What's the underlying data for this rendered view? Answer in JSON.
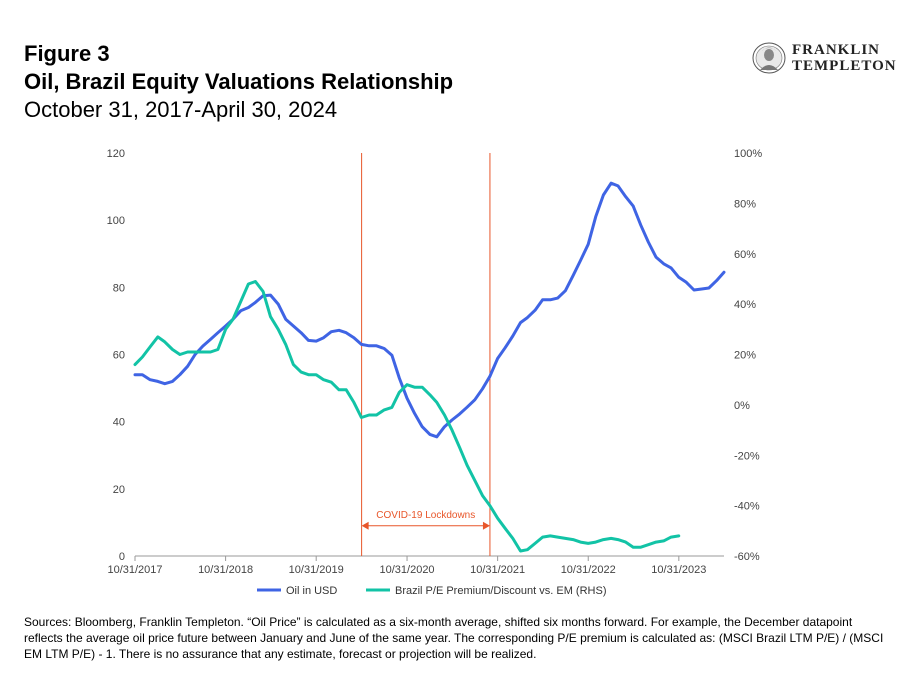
{
  "header": {
    "figure_label": "Figure 3",
    "title": "Oil, Brazil Equity Valuations Relationship",
    "subtitle": "October 31, 2017-April 30, 2024"
  },
  "logo": {
    "line1": "FRANKLIN",
    "line2": "TEMPLETON",
    "icon": "portrait-icon"
  },
  "colors": {
    "oil": "#3F64E4",
    "pe": "#12C3A6",
    "lockdown": "#E8562A",
    "gridline": "#d9d9d9",
    "axis": "#999999"
  },
  "chart_data": {
    "type": "line",
    "x_ticks": [
      "10/31/2017",
      "10/31/2018",
      "10/31/2019",
      "10/31/2020",
      "10/31/2021",
      "10/31/2022",
      "10/31/2023"
    ],
    "y_left": {
      "min": 0,
      "max": 120,
      "ticks": [
        0,
        20,
        40,
        60,
        80,
        100,
        120
      ]
    },
    "y_right": {
      "min": -0.6,
      "max": 1.0,
      "ticks": [
        "-60%",
        "-40%",
        "-20%",
        "0%",
        "20%",
        "40%",
        "60%",
        "80%",
        "100%"
      ]
    },
    "grid": false,
    "legend_position": "bottom",
    "series": [
      {
        "name": "Oil in USD",
        "axis": "left",
        "points": [
          [
            "2017-10-31",
            54.0
          ],
          [
            "2017-11-30",
            54.0
          ],
          [
            "2017-12-31",
            52.5
          ],
          [
            "2018-01-31",
            52.0
          ],
          [
            "2018-02-28",
            51.3
          ],
          [
            "2018-03-31",
            52.0
          ],
          [
            "2018-04-30",
            54.0
          ],
          [
            "2018-05-31",
            56.5
          ],
          [
            "2018-06-30",
            60.0
          ],
          [
            "2018-07-31",
            62.5
          ],
          [
            "2018-08-31",
            64.5
          ],
          [
            "2018-09-30",
            66.5
          ],
          [
            "2018-10-31",
            68.5
          ],
          [
            "2018-11-30",
            70.5
          ],
          [
            "2018-12-31",
            73.0
          ],
          [
            "2019-01-31",
            74.0
          ],
          [
            "2019-02-28",
            75.5
          ],
          [
            "2019-03-31",
            77.5
          ],
          [
            "2019-04-30",
            77.7
          ],
          [
            "2019-05-31",
            75.0
          ],
          [
            "2019-06-30",
            70.5
          ],
          [
            "2019-07-31",
            68.5
          ],
          [
            "2019-08-31",
            66.5
          ],
          [
            "2019-09-30",
            64.2
          ],
          [
            "2019-10-31",
            64.0
          ],
          [
            "2019-11-30",
            65.0
          ],
          [
            "2019-12-31",
            66.8
          ],
          [
            "2020-01-31",
            67.2
          ],
          [
            "2020-02-29",
            66.5
          ],
          [
            "2020-03-31",
            65.0
          ],
          [
            "2020-04-30",
            63.0
          ],
          [
            "2020-05-31",
            62.6
          ],
          [
            "2020-06-30",
            62.6
          ],
          [
            "2020-07-31",
            61.8
          ],
          [
            "2020-08-31",
            59.8
          ],
          [
            "2020-09-30",
            53.0
          ],
          [
            "2020-10-31",
            47.0
          ],
          [
            "2020-11-30",
            42.5
          ],
          [
            "2020-12-31",
            38.5
          ],
          [
            "2021-01-31",
            36.2
          ],
          [
            "2021-02-28",
            35.5
          ],
          [
            "2021-03-31",
            38.5
          ],
          [
            "2021-04-30",
            40.5
          ],
          [
            "2021-05-31",
            42.3
          ],
          [
            "2021-06-30",
            44.3
          ],
          [
            "2021-07-31",
            46.5
          ],
          [
            "2021-08-31",
            49.8
          ],
          [
            "2021-09-30",
            53.5
          ],
          [
            "2021-10-31",
            58.8
          ],
          [
            "2021-11-30",
            62.0
          ],
          [
            "2021-12-31",
            65.5
          ],
          [
            "2022-01-31",
            69.5
          ],
          [
            "2022-02-28",
            71.0
          ],
          [
            "2022-03-31",
            73.2
          ],
          [
            "2022-04-30",
            76.3
          ],
          [
            "2022-05-31",
            76.3
          ],
          [
            "2022-06-30",
            76.8
          ],
          [
            "2022-07-31",
            79.0
          ],
          [
            "2022-08-31",
            83.5
          ],
          [
            "2022-09-30",
            88.0
          ],
          [
            "2022-10-31",
            92.8
          ],
          [
            "2022-11-30",
            101.0
          ],
          [
            "2022-12-31",
            107.5
          ],
          [
            "2023-01-31",
            111.0
          ],
          [
            "2023-02-28",
            110.2
          ],
          [
            "2023-03-31",
            107.0
          ],
          [
            "2023-04-30",
            104.2
          ],
          [
            "2023-05-31",
            98.5
          ],
          [
            "2023-06-30",
            93.5
          ],
          [
            "2023-07-31",
            89.0
          ],
          [
            "2023-08-31",
            87.0
          ],
          [
            "2023-09-30",
            85.8
          ],
          [
            "2023-10-31",
            83.0
          ],
          [
            "2023-11-30",
            81.5
          ],
          [
            "2023-12-31",
            79.2
          ],
          [
            "2024-01-31",
            79.5
          ],
          [
            "2024-02-29",
            79.8
          ],
          [
            "2024-03-31",
            82.0
          ],
          [
            "2024-04-30",
            84.5
          ]
        ]
      },
      {
        "name": "Brazil P/E Premium/Discount vs. EM (RHS)",
        "axis": "right",
        "points": [
          [
            "2017-10-31",
            0.16
          ],
          [
            "2017-11-30",
            0.19
          ],
          [
            "2017-12-31",
            0.23
          ],
          [
            "2018-01-31",
            0.27
          ],
          [
            "2018-02-28",
            0.25
          ],
          [
            "2018-03-31",
            0.22
          ],
          [
            "2018-04-30",
            0.2
          ],
          [
            "2018-05-31",
            0.21
          ],
          [
            "2018-06-30",
            0.21
          ],
          [
            "2018-07-31",
            0.21
          ],
          [
            "2018-08-31",
            0.21
          ],
          [
            "2018-09-30",
            0.22
          ],
          [
            "2018-10-31",
            0.3
          ],
          [
            "2018-11-30",
            0.34
          ],
          [
            "2018-12-31",
            0.41
          ],
          [
            "2019-01-31",
            0.48
          ],
          [
            "2019-02-28",
            0.49
          ],
          [
            "2019-03-31",
            0.45
          ],
          [
            "2019-04-30",
            0.35
          ],
          [
            "2019-05-31",
            0.3
          ],
          [
            "2019-06-30",
            0.24
          ],
          [
            "2019-07-31",
            0.16
          ],
          [
            "2019-08-31",
            0.13
          ],
          [
            "2019-09-30",
            0.12
          ],
          [
            "2019-10-31",
            0.12
          ],
          [
            "2019-11-30",
            0.1
          ],
          [
            "2019-12-31",
            0.09
          ],
          [
            "2020-01-31",
            0.06
          ],
          [
            "2020-02-29",
            0.06
          ],
          [
            "2020-03-31",
            0.01
          ],
          [
            "2020-04-30",
            -0.05
          ],
          [
            "2020-05-31",
            -0.04
          ],
          [
            "2020-06-30",
            -0.04
          ],
          [
            "2020-07-31",
            -0.02
          ],
          [
            "2020-08-31",
            -0.01
          ],
          [
            "2020-09-30",
            0.05
          ],
          [
            "2020-10-31",
            0.08
          ],
          [
            "2020-11-30",
            0.07
          ],
          [
            "2020-12-31",
            0.07
          ],
          [
            "2021-01-31",
            0.04
          ],
          [
            "2021-02-28",
            0.01
          ],
          [
            "2021-03-31",
            -0.04
          ],
          [
            "2021-04-30",
            -0.1
          ],
          [
            "2021-05-31",
            -0.17
          ],
          [
            "2021-06-30",
            -0.24
          ],
          [
            "2021-07-31",
            -0.3
          ],
          [
            "2021-08-31",
            -0.36
          ],
          [
            "2021-09-30",
            -0.4
          ],
          [
            "2021-10-31",
            -0.45
          ],
          [
            "2021-11-30",
            -0.49
          ],
          [
            "2021-12-31",
            -0.53
          ],
          [
            "2022-01-31",
            -0.58
          ],
          [
            "2022-02-28",
            -0.575
          ],
          [
            "2022-03-31",
            -0.55
          ],
          [
            "2022-04-30",
            -0.525
          ],
          [
            "2022-05-31",
            -0.52
          ],
          [
            "2022-06-30",
            -0.525
          ],
          [
            "2022-07-31",
            -0.53
          ],
          [
            "2022-08-31",
            -0.535
          ],
          [
            "2022-09-30",
            -0.545
          ],
          [
            "2022-10-31",
            -0.55
          ],
          [
            "2022-11-30",
            -0.545
          ],
          [
            "2022-12-31",
            -0.535
          ],
          [
            "2023-01-31",
            -0.53
          ],
          [
            "2023-02-28",
            -0.535
          ],
          [
            "2023-03-31",
            -0.545
          ],
          [
            "2023-04-30",
            -0.565
          ],
          [
            "2023-05-31",
            -0.565
          ],
          [
            "2023-06-30",
            -0.555
          ],
          [
            "2023-07-31",
            -0.545
          ],
          [
            "2023-08-31",
            -0.54
          ],
          [
            "2023-09-30",
            -0.525
          ],
          [
            "2023-10-31",
            -0.52
          ]
        ]
      }
    ],
    "annotations": [
      {
        "type": "vline",
        "x": "2020-05-01"
      },
      {
        "type": "vline",
        "x": "2021-09-30"
      },
      {
        "type": "range_arrow",
        "label": "COVID-19 Lockdowns",
        "start": "2020-05-01",
        "end": "2021-09-30",
        "y": 9
      }
    ]
  },
  "footnote": "Sources: Bloomberg, Franklin Templeton. “Oil Price” is calculated as a six-month average, shifted six months forward. For example, the December datapoint reflects the average oil price future between January and June of the same year. The corresponding P/E premium is calculated as: (MSCI Brazil LTM P/E) / (MSCI EM LTM P/E) - 1. There is no assurance that any estimate, forecast or projection will be realized."
}
